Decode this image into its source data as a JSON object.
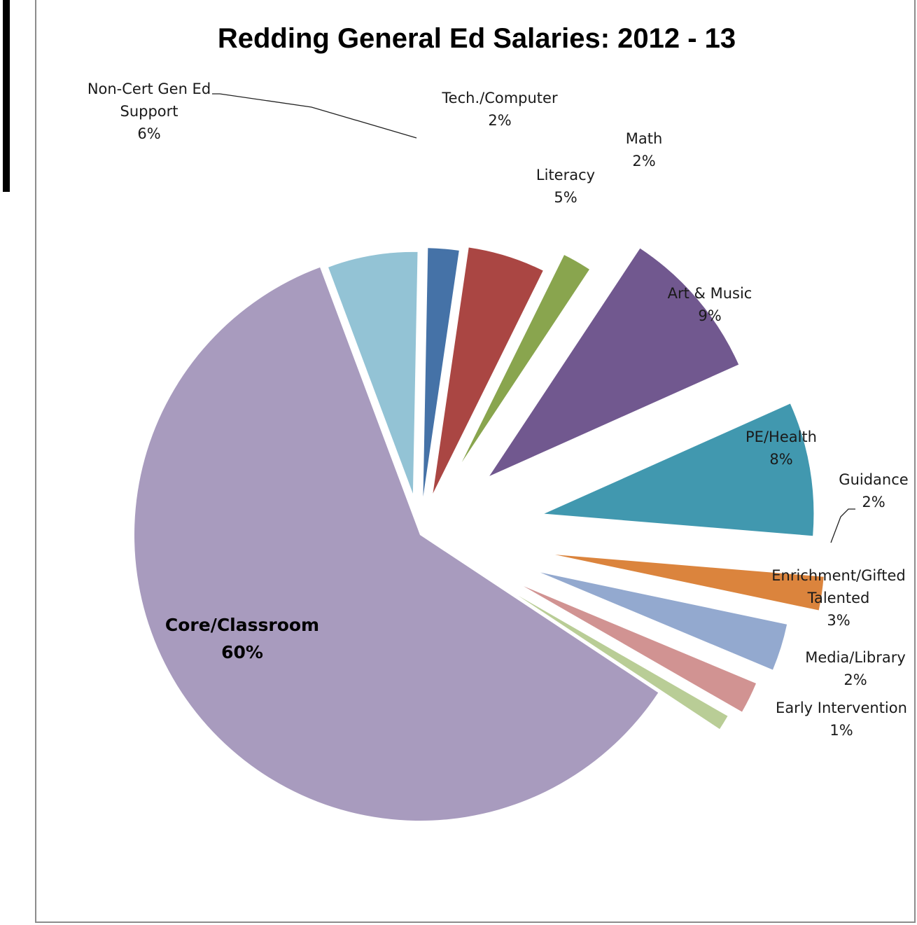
{
  "chart_data": {
    "type": "pie",
    "title": "Redding General Ed Salaries: 2012 - 13",
    "slices": [
      {
        "name": "Non-Cert Gen Ed Support",
        "label_lines": [
          "Non-Cert Gen Ed",
          "Support"
        ],
        "pct_label": "6%",
        "value": 6,
        "color": "#93c3d5"
      },
      {
        "name": "Tech./Computer",
        "label_lines": [
          "Tech./Computer"
        ],
        "pct_label": "2%",
        "value": 2,
        "color": "#4572a7"
      },
      {
        "name": "Literacy",
        "label_lines": [
          "Literacy"
        ],
        "pct_label": "5%",
        "value": 5,
        "color": "#aa4643"
      },
      {
        "name": "Math",
        "label_lines": [
          "Math"
        ],
        "pct_label": "2%",
        "value": 2,
        "color": "#89a54e"
      },
      {
        "name": "Art & Music",
        "label_lines": [
          "Art & Music"
        ],
        "pct_label": "9%",
        "value": 9,
        "color": "#71588f"
      },
      {
        "name": "PE/Health",
        "label_lines": [
          "PE/Health"
        ],
        "pct_label": "8%",
        "value": 8,
        "color": "#4198af"
      },
      {
        "name": "Guidance",
        "label_lines": [
          "Guidance"
        ],
        "pct_label": "2%",
        "value": 2,
        "color": "#db843d"
      },
      {
        "name": "Enrichment/Gifted Talented",
        "label_lines": [
          "Enrichment/Gifted",
          "Talented"
        ],
        "pct_label": "3%",
        "value": 3,
        "color": "#93a9cf"
      },
      {
        "name": "Media/Library",
        "label_lines": [
          "Media/Library"
        ],
        "pct_label": "2%",
        "value": 2,
        "color": "#d19392"
      },
      {
        "name": "Early Intervention",
        "label_lines": [
          "Early Intervention"
        ],
        "pct_label": "1%",
        "value": 1,
        "color": "#b9cd96"
      },
      {
        "name": "Core/Classroom",
        "label_lines": [
          "Core/Classroom"
        ],
        "pct_label": "60%",
        "value": 60,
        "color": "#a89bbe"
      }
    ]
  }
}
